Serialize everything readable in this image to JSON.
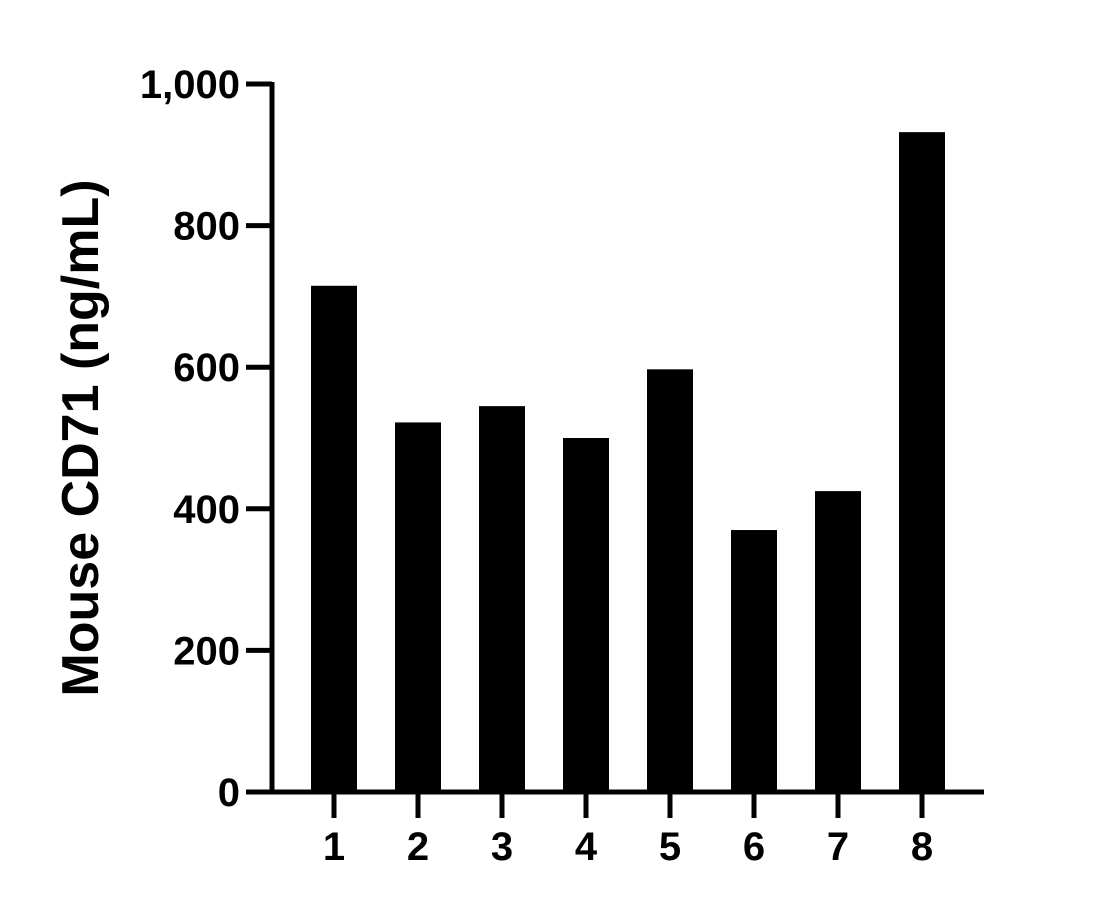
{
  "chart_data": {
    "type": "bar",
    "title": "",
    "xlabel": "",
    "ylabel": "Mouse CD71 (ng/mL)",
    "categories": [
      "1",
      "2",
      "3",
      "4",
      "5",
      "6",
      "7",
      "8"
    ],
    "values": [
      715,
      522,
      545,
      500,
      597,
      370,
      425,
      932
    ],
    "ylim": [
      0,
      1000
    ],
    "yticks": [
      0,
      200,
      400,
      600,
      800,
      1000
    ],
    "ytick_labels": [
      "0",
      "200",
      "400",
      "600",
      "800",
      "1,000"
    ],
    "grid": false,
    "legend": "none",
    "bar_color": "#000000",
    "axis_color": "#000000"
  }
}
